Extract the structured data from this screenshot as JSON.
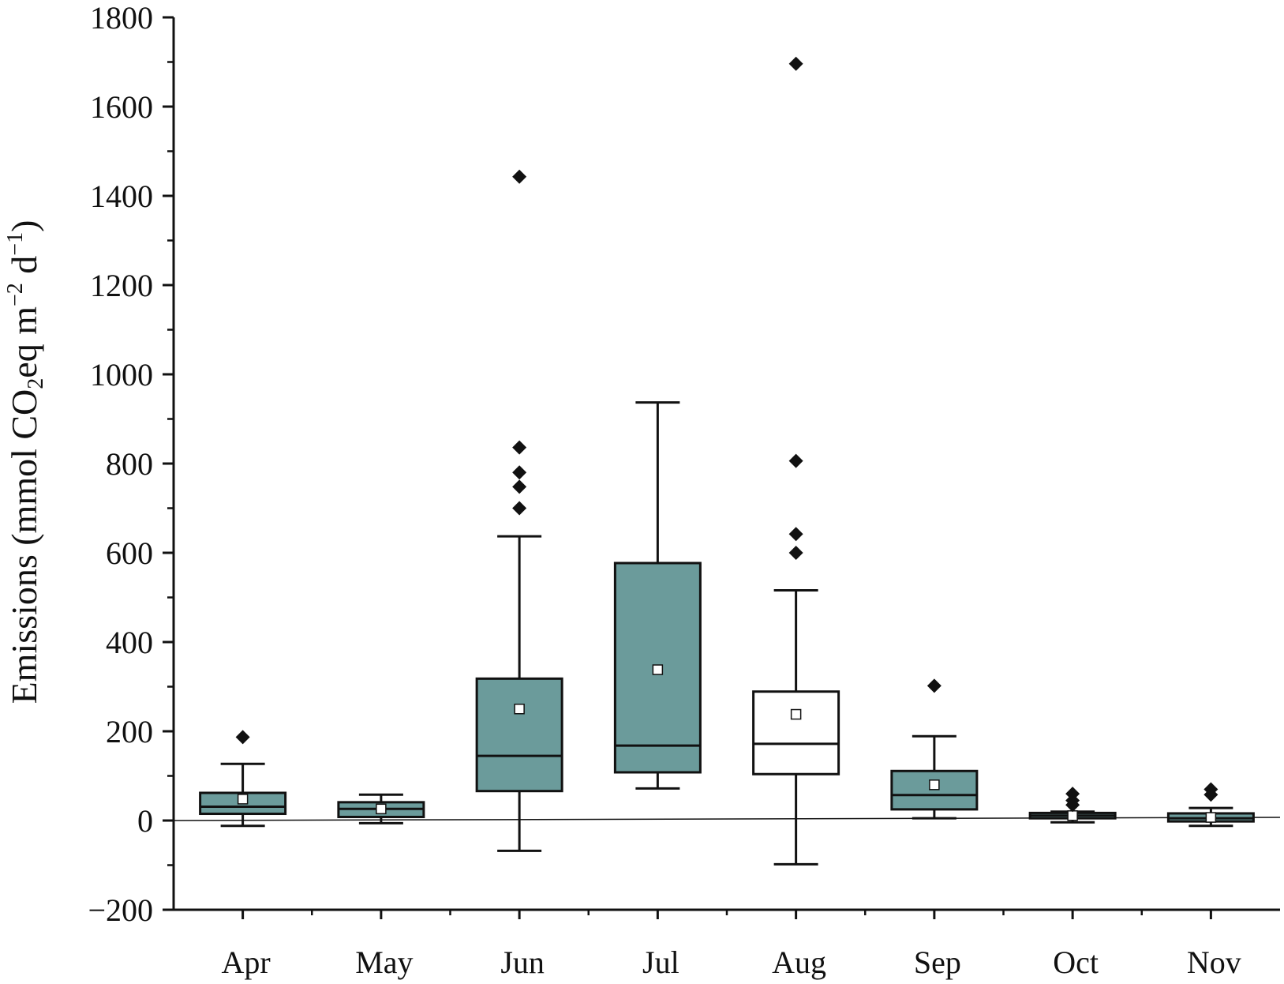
{
  "chart_data": {
    "type": "box",
    "categories": [
      "Apr",
      "May",
      "Jun",
      "Jul",
      "Aug",
      "Sep",
      "Oct",
      "Nov"
    ],
    "ylabel": {
      "prefix": "Emissions (mmol CO",
      "sub": "2",
      "middle": "eq m",
      "sup1": "−2",
      "middle2": " d",
      "sup2": "−1",
      "suffix": ")"
    },
    "ylim": [
      -200,
      1800
    ],
    "yticks": [
      -200,
      0,
      200,
      400,
      600,
      800,
      1000,
      1200,
      1400,
      1600,
      1800
    ],
    "ytick_labels": [
      "−200",
      "0",
      "200",
      "400",
      "600",
      "800",
      "1000",
      "1200",
      "1400",
      "1600",
      "1800"
    ],
    "zero_line": true,
    "grid": false,
    "colors": {
      "box_fill": "#6b9b9b",
      "box_fill_alt": "#ffffff",
      "stroke": "#111111"
    },
    "boxes": [
      {
        "category": "Apr",
        "whisker_low": -12,
        "q1": 15,
        "median": 31,
        "q3": 62,
        "whisker_high": 127,
        "mean": 48,
        "outliers": [
          187
        ],
        "fill": "teal"
      },
      {
        "category": "May",
        "whisker_low": -6,
        "q1": 8,
        "median": 26,
        "q3": 41,
        "whisker_high": 58,
        "mean": 26,
        "outliers": [],
        "fill": "teal"
      },
      {
        "category": "Jun",
        "whisker_low": -68,
        "q1": 66,
        "median": 145,
        "q3": 318,
        "whisker_high": 637,
        "mean": 250,
        "outliers": [
          700,
          748,
          780,
          836,
          1443
        ],
        "fill": "teal"
      },
      {
        "category": "Jul",
        "whisker_low": 72,
        "q1": 108,
        "median": 168,
        "q3": 577,
        "whisker_high": 937,
        "mean": 338,
        "outliers": [],
        "fill": "teal"
      },
      {
        "category": "Aug",
        "whisker_low": -98,
        "q1": 104,
        "median": 172,
        "q3": 289,
        "whisker_high": 516,
        "mean": 238,
        "outliers": [
          600,
          642,
          806,
          1696
        ],
        "fill": "white"
      },
      {
        "category": "Sep",
        "whisker_low": 5,
        "q1": 25,
        "median": 57,
        "q3": 111,
        "whisker_high": 189,
        "mean": 80,
        "outliers": [
          302
        ],
        "fill": "teal"
      },
      {
        "category": "Oct",
        "whisker_low": -4,
        "q1": 5,
        "median": 11,
        "q3": 17,
        "whisker_high": 20,
        "mean": 11,
        "outliers": [
          35,
          45,
          60
        ],
        "fill": "teal"
      },
      {
        "category": "Nov",
        "whisker_low": -12,
        "q1": -2,
        "median": 5,
        "q3": 16,
        "whisker_high": 28,
        "mean": 7,
        "outliers": [
          58,
          70
        ],
        "fill": "teal"
      }
    ]
  }
}
